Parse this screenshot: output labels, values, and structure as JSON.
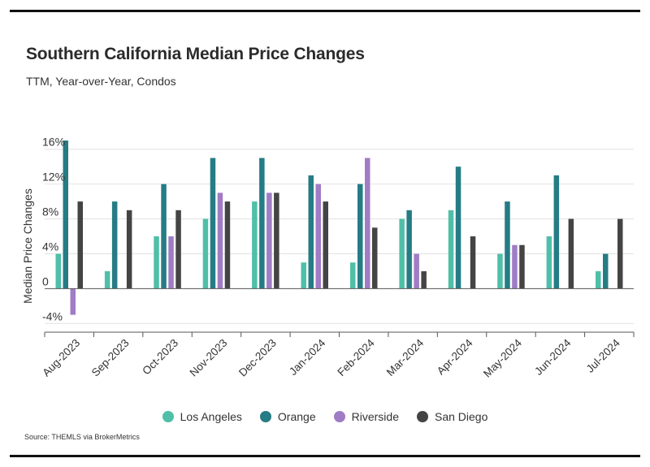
{
  "chart_data": {
    "type": "bar",
    "title": "Southern California Median Price Changes",
    "subtitle": "TTM, Year-over-Year, Condos",
    "xlabel": "",
    "ylabel": "Median Price Changes",
    "ylim": [
      -5,
      17
    ],
    "yticks": [
      {
        "value": 16,
        "label": "16%"
      },
      {
        "value": 12,
        "label": "12%"
      },
      {
        "value": 8,
        "label": "8%"
      },
      {
        "value": 4,
        "label": "4%"
      },
      {
        "value": 0,
        "label": "0"
      },
      {
        "value": -4,
        "label": "-4%"
      }
    ],
    "grid": true,
    "legend_position": "bottom",
    "categories": [
      "Aug-2023",
      "Sep-2023",
      "Oct-2023",
      "Nov-2023",
      "Dec-2023",
      "Jan-2024",
      "Feb-2024",
      "Mar-2024",
      "Apr-2024",
      "May-2024",
      "Jun-2024",
      "Jul-2024"
    ],
    "series": [
      {
        "name": "Los Angeles",
        "color": "#4fbfa8",
        "values": [
          4,
          2,
          6,
          8,
          10,
          3,
          3,
          8,
          9,
          4,
          6,
          2
        ]
      },
      {
        "name": "Orange",
        "color": "#257c85",
        "values": [
          17,
          10,
          12,
          15,
          15,
          13,
          12,
          9,
          14,
          10,
          13,
          4
        ]
      },
      {
        "name": "Riverside",
        "color": "#a07cc5",
        "values": [
          -3,
          null,
          6,
          11,
          11,
          12,
          15,
          4,
          null,
          5,
          null,
          null
        ]
      },
      {
        "name": "San Diego",
        "color": "#444444",
        "values": [
          10,
          9,
          9,
          10,
          11,
          10,
          7,
          2,
          6,
          5,
          8,
          8
        ]
      }
    ],
    "source": "Source:  THEMLS via BrokerMetrics"
  }
}
